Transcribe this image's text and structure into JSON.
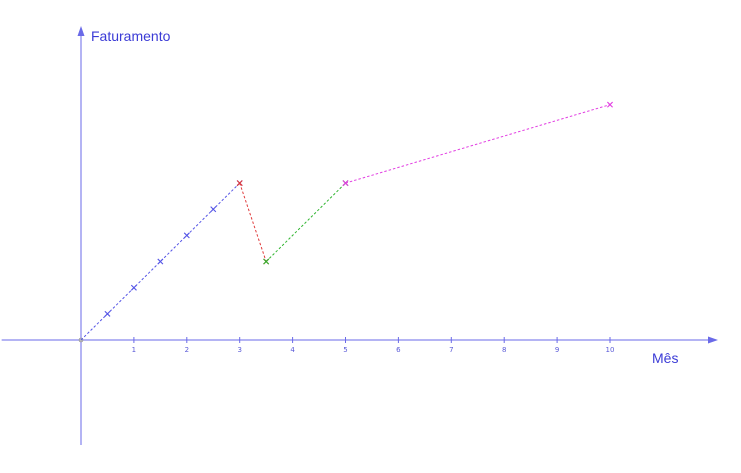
{
  "chart_data": {
    "type": "line",
    "title": "",
    "xlabel": "Mês",
    "ylabel": "Faturamento",
    "xlim": [
      -1.5,
      12.0
    ],
    "ylim": [
      -2.0,
      6.25
    ],
    "x_ticks": [
      1,
      2,
      3,
      4,
      5,
      6,
      7,
      8,
      9,
      10
    ],
    "grid": false,
    "legend": "none",
    "axis_color": "#6a6ae8",
    "series": [
      {
        "color": "#5555e6",
        "points": [
          [
            0,
            0
          ],
          [
            0.5,
            0.5
          ],
          [
            1,
            1
          ],
          [
            1.5,
            1.5
          ],
          [
            2,
            2
          ],
          [
            2.5,
            2.5
          ],
          [
            3,
            3
          ]
        ]
      },
      {
        "color": "#e03a3a",
        "points": [
          [
            3,
            3
          ],
          [
            3.5,
            1.5
          ]
        ]
      },
      {
        "color": "#2fb52f",
        "points": [
          [
            3.5,
            1.5
          ],
          [
            5,
            3
          ]
        ]
      },
      {
        "color": "#e23ee2",
        "points": [
          [
            5,
            3
          ],
          [
            10,
            4.5
          ]
        ]
      }
    ]
  }
}
